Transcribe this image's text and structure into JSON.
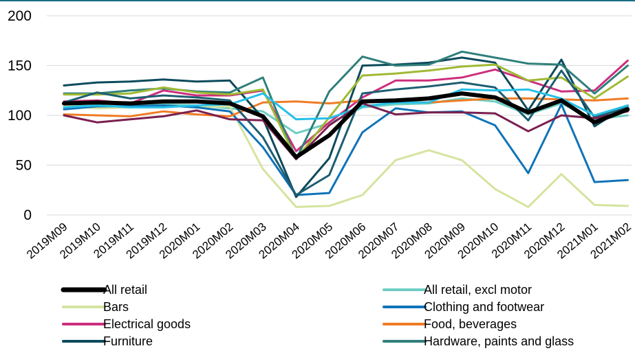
{
  "chart_data": {
    "type": "line",
    "title": "",
    "xlabel": "",
    "ylabel": "",
    "ylim": [
      0,
      200
    ],
    "yticks": [
      0,
      50,
      100,
      150,
      200
    ],
    "grid": "horizontal",
    "legend_position": "bottom",
    "categories": [
      "2019M09",
      "2019M10",
      "2019M11",
      "2019M12",
      "2020M01",
      "2020M02",
      "2020M03",
      "2020M04",
      "2020M05",
      "2020M06",
      "2020M07",
      "2020M08",
      "2020M09",
      "2020M10",
      "2020M11",
      "2020M12",
      "2021M01",
      "2021M02"
    ],
    "series": [
      {
        "name": "All retail",
        "color": "#000000",
        "emphasis": true,
        "values": [
          112,
          113,
          112,
          114,
          114,
          112,
          99,
          58,
          80,
          114,
          115,
          117,
          122,
          118,
          103,
          115,
          93,
          106
        ]
      },
      {
        "name": "All retail, excl motor",
        "color": "#6ecdc3",
        "values": [
          110,
          109,
          110,
          111,
          110,
          107,
          104,
          82,
          92,
          108,
          111,
          112,
          117,
          114,
          101,
          112,
          96,
          100
        ]
      },
      {
        "name": "Bars",
        "color": "#d4e49e",
        "values": [
          110,
          107,
          108,
          110,
          108,
          109,
          46,
          8,
          9,
          20,
          55,
          65,
          55,
          26,
          8,
          41,
          10,
          9
        ]
      },
      {
        "name": "Clothing and footwear",
        "color": "#0f73b8",
        "values": [
          106,
          109,
          109,
          110,
          108,
          104,
          68,
          20,
          22,
          83,
          107,
          103,
          104,
          90,
          42,
          111,
          33,
          35
        ]
      },
      {
        "name": "Electrical goods",
        "color": "#cc2e7c",
        "values": [
          114,
          115,
          112,
          125,
          120,
          120,
          125,
          64,
          93,
          118,
          135,
          135,
          138,
          146,
          135,
          124,
          125,
          155
        ]
      },
      {
        "name": "Food, beverages",
        "color": "#f07b25",
        "values": [
          101,
          100,
          99,
          104,
          101,
          99,
          113,
          114,
          112,
          115,
          114,
          113,
          115,
          117,
          117,
          116,
          115,
          117
        ]
      },
      {
        "name": "Furniture",
        "color": "#0b4a5c",
        "values": [
          130,
          133,
          134,
          136,
          134,
          135,
          97,
          18,
          57,
          150,
          151,
          153,
          158,
          153,
          105,
          156,
          89,
          110
        ]
      },
      {
        "name": "Hardware, paints and glass",
        "color": "#2f7f7a",
        "values": [
          122,
          122,
          125,
          127,
          124,
          123,
          138,
          56,
          124,
          159,
          150,
          151,
          164,
          158,
          152,
          151,
          122,
          150
        ]
      },
      {
        "name": "",
        "color": "#9fb934",
        "values": [
          121,
          121,
          122,
          128,
          123,
          121,
          126,
          56,
          98,
          140,
          142,
          145,
          149,
          151,
          135,
          138,
          117,
          139
        ]
      },
      {
        "name": "",
        "color": "#1d5e72",
        "values": [
          113,
          123,
          117,
          120,
          118,
          115,
          78,
          20,
          40,
          122,
          126,
          129,
          133,
          128,
          95,
          145,
          98,
          108
        ]
      },
      {
        "name": "",
        "color": "#26c0e8",
        "values": [
          108,
          110,
          108,
          108,
          110,
          111,
          122,
          96,
          97,
          109,
          113,
          113,
          126,
          125,
          126,
          117,
          100,
          110
        ]
      },
      {
        "name": "",
        "color": "#7a1f4f",
        "values": [
          100,
          93,
          96,
          99,
          105,
          96,
          95,
          56,
          90,
          112,
          101,
          103,
          103,
          102,
          84,
          100,
          97,
          104
        ]
      }
    ]
  }
}
